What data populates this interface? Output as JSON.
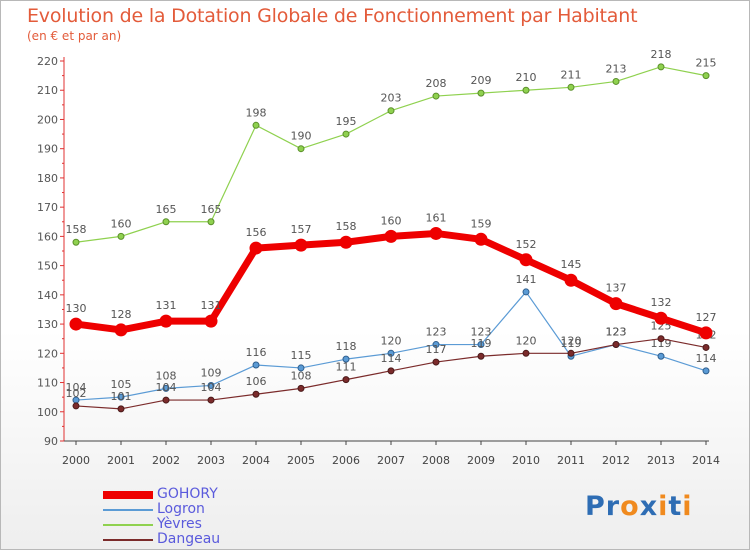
{
  "page": {
    "title": "Evolution de la Dotation Globale de Fonctionnement par Habitant",
    "subtitle": "(en € et par an)"
  },
  "chart_data": {
    "type": "line",
    "title": "Evolution de la Dotation Globale de Fonctionnement par Habitant",
    "subtitle": "(en € et par an)",
    "xlabel": "",
    "ylabel": "",
    "x": [
      "2000",
      "2001",
      "2002",
      "2003",
      "2004",
      "2005",
      "2006",
      "2007",
      "2008",
      "2009",
      "2010",
      "2011",
      "2012",
      "2013",
      "2014"
    ],
    "ylim": [
      90,
      220
    ],
    "yticks": [
      90,
      100,
      110,
      120,
      130,
      140,
      150,
      160,
      170,
      180,
      190,
      200,
      210,
      220
    ],
    "grid": false,
    "legend": "bottom-left",
    "series": [
      {
        "name": "GOHORY",
        "color": "#ee0000",
        "values": [
          130,
          128,
          131,
          131,
          156,
          157,
          158,
          160,
          161,
          159,
          152,
          145,
          137,
          132,
          127
        ],
        "labels": [
          "130",
          "128",
          "131",
          "131",
          "156",
          "157",
          "158",
          "160",
          "161",
          "159",
          "152",
          "145",
          "137",
          "132",
          "127"
        ]
      },
      {
        "name": "Logron",
        "color": "#5b9bd5",
        "values": [
          104,
          105,
          108,
          109,
          116,
          115,
          118,
          120,
          123,
          123,
          141,
          119,
          123,
          119,
          114
        ],
        "labels": [
          "104",
          "105",
          "108",
          "109",
          "116",
          "115",
          "118",
          "120",
          "123",
          "123",
          "141",
          "119",
          "123",
          "119",
          "114"
        ]
      },
      {
        "name": "Yèvres",
        "color": "#8fd14f",
        "values": [
          158,
          160,
          165,
          165,
          198,
          190,
          195,
          203,
          208,
          209,
          210,
          211,
          213,
          218,
          215
        ],
        "labels": [
          "158",
          "160",
          "165",
          "165",
          "198",
          "190",
          "195",
          "203",
          "208",
          "209",
          "210",
          "211",
          "213",
          "218",
          "215"
        ]
      },
      {
        "name": "Dangeau",
        "color": "#7b2b2b",
        "values": [
          102,
          101,
          104,
          104,
          106,
          108,
          111,
          114,
          117,
          119,
          120,
          120,
          123,
          125,
          122
        ],
        "labels": [
          "102",
          "101",
          "104",
          "104",
          "106",
          "108",
          "111",
          "114",
          "117",
          "119",
          "120",
          "120",
          "123",
          "125",
          "122"
        ]
      }
    ]
  },
  "logo": {
    "text": "Proxiti",
    "letters": [
      "P",
      "r",
      "o",
      "x",
      "i",
      "t",
      "i"
    ],
    "colors": [
      "#2e6db4",
      "#2e6db4",
      "#f08a1e",
      "#2e6db4",
      "#f08a1e",
      "#2e6db4",
      "#f08a1e"
    ]
  }
}
